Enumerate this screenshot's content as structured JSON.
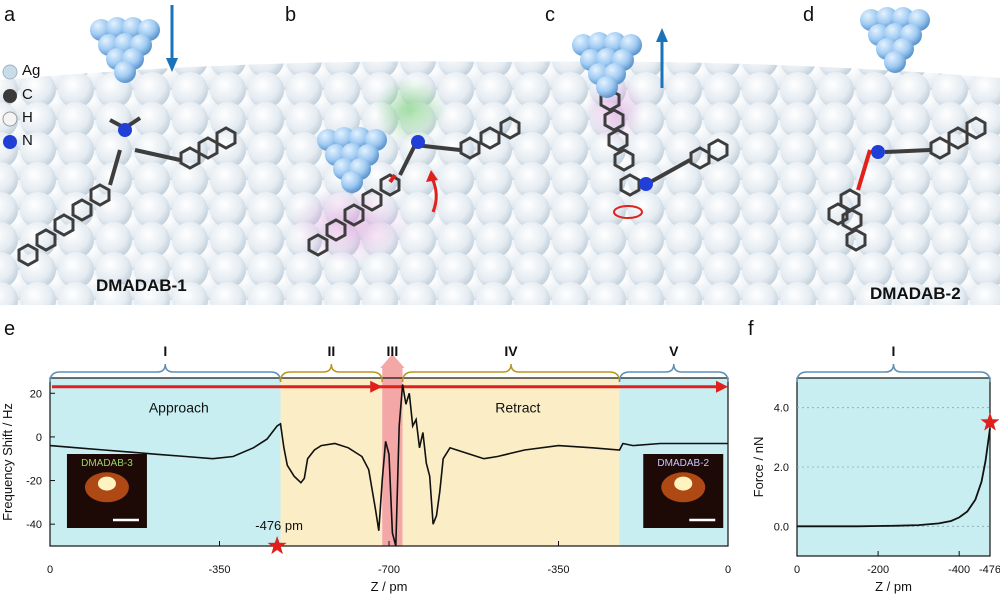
{
  "panels": {
    "a": "a",
    "b": "b",
    "c": "c",
    "d": "d",
    "e": "e",
    "f": "f"
  },
  "legend": {
    "items": [
      {
        "label": "Ag",
        "color": "#c9dcea"
      },
      {
        "label": "C",
        "color": "#3a3a3a"
      },
      {
        "label": "H",
        "color": "#f4f4f4"
      },
      {
        "label": "N",
        "color": "#1f3fd6"
      }
    ]
  },
  "molecule_labels": {
    "left": "DMADAB-1",
    "right": "DMADAB-2"
  },
  "inset_labels": {
    "left": "DMADAB-3",
    "right": "DMADAB-2"
  },
  "colors": {
    "approach_region": "#c8eef2",
    "interaction_region": "#fbedc5",
    "contact_region": "#f4a7a7",
    "arrow": "#e0201c",
    "probe_arrow": "#1a73b8",
    "brace_blue": "#5b8fb5",
    "brace_gold": "#b8961e"
  },
  "chart_data": [
    {
      "type": "line",
      "panel": "e",
      "xlabel": "Z / pm",
      "ylabel": "Frequency Shift / Hz",
      "xticks": [
        "0",
        "-350",
        "-700",
        "-350",
        "0"
      ],
      "yticks": [
        20,
        0,
        -20,
        -40
      ],
      "ylim": [
        -50,
        27
      ],
      "regions": [
        {
          "name": "I",
          "from": 0,
          "to": 0.34
        },
        {
          "name": "II",
          "from": 0.34,
          "to": 0.49
        },
        {
          "name": "III",
          "from": 0.49,
          "to": 0.52
        },
        {
          "name": "IV",
          "from": 0.52,
          "to": 0.84
        },
        {
          "name": "V",
          "from": 0.84,
          "to": 1.0
        }
      ],
      "annotations": {
        "approach": "Approach",
        "retract": "Retract",
        "min_marker": "-476 pm"
      },
      "series": [
        {
          "x": [
            0,
            0.04,
            0.08,
            0.12,
            0.16,
            0.2,
            0.24,
            0.27,
            0.3,
            0.32,
            0.335,
            0.34,
            0.345,
            0.35,
            0.36,
            0.37,
            0.375,
            0.38,
            0.39,
            0.4,
            0.42,
            0.44,
            0.46,
            0.47,
            0.48,
            0.485,
            0.49,
            0.495,
            0.5,
            0.505,
            0.51,
            0.515,
            0.52,
            0.525,
            0.53,
            0.535,
            0.54,
            0.545,
            0.55,
            0.555,
            0.56,
            0.565,
            0.57,
            0.575,
            0.58,
            0.59,
            0.6,
            0.62,
            0.64,
            0.66,
            0.7,
            0.75,
            0.8,
            0.84,
            0.845,
            0.86,
            0.9,
            0.95,
            1.0
          ],
          "y": [
            -4,
            -5,
            -6,
            -7,
            -8,
            -9,
            -10,
            -9,
            -5,
            -1,
            5,
            6,
            -5,
            -13,
            -18,
            -21,
            -19,
            -10,
            -6,
            -4,
            -3,
            -5,
            -9,
            -15,
            -33,
            -43,
            -20,
            -2,
            -8,
            -44,
            -50,
            5,
            24,
            15,
            20,
            5,
            8,
            -5,
            2,
            -12,
            -18,
            -40,
            -36,
            -25,
            -10,
            -5,
            -6,
            -8,
            -10,
            -9,
            -6,
            -4,
            -5,
            -6,
            -3,
            -4,
            -3,
            -3,
            -3
          ]
        }
      ]
    },
    {
      "type": "line",
      "panel": "f",
      "xlabel": "Z / pm",
      "ylabel": "Force / nN",
      "xticks": [
        "0",
        "-200",
        "-400",
        "-476"
      ],
      "yticks": [
        0.0,
        2.0,
        4.0
      ],
      "ylim": [
        -1,
        5
      ],
      "region": "I",
      "series": [
        {
          "x": [
            0,
            -50,
            -100,
            -150,
            -200,
            -250,
            -300,
            -350,
            -380,
            -400,
            -420,
            -440,
            -455,
            -465,
            -476
          ],
          "y": [
            0,
            0,
            0,
            0,
            0.01,
            0.02,
            0.04,
            0.1,
            0.18,
            0.3,
            0.5,
            0.9,
            1.5,
            2.2,
            3.3
          ]
        }
      ]
    }
  ]
}
